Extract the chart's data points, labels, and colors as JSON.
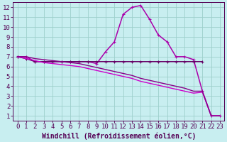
{
  "xlabel": "Windchill (Refroidissement éolien,°C)",
  "bg_color": "#c8eef0",
  "grid_color": "#9dcfcc",
  "ylim": [
    0.5,
    12.5
  ],
  "xlim": [
    -0.5,
    23.5
  ],
  "yticks": [
    1,
    2,
    3,
    4,
    5,
    6,
    7,
    8,
    9,
    10,
    11,
    12
  ],
  "xticks": [
    0,
    1,
    2,
    3,
    4,
    5,
    6,
    7,
    8,
    9,
    10,
    11,
    12,
    13,
    14,
    15,
    16,
    17,
    18,
    19,
    20,
    21,
    22,
    23
  ],
  "lines": [
    {
      "x": [
        0,
        1,
        2,
        3,
        4,
        5,
        6,
        7,
        8,
        9,
        10,
        11,
        12,
        13,
        14,
        15,
        16,
        17,
        18,
        19,
        20,
        21,
        22,
        23
      ],
      "y": [
        7.0,
        7.0,
        6.5,
        6.5,
        6.5,
        6.5,
        6.5,
        6.5,
        6.5,
        6.3,
        7.5,
        8.5,
        11.3,
        12.0,
        12.2,
        10.8,
        9.2,
        8.5,
        7.0,
        7.0,
        6.7,
        3.5,
        1.0,
        1.0
      ],
      "color": "#aa00aa",
      "lw": 1.1,
      "marker": "+"
    },
    {
      "x": [
        0,
        1,
        2,
        3,
        4,
        5,
        6,
        7,
        8,
        9,
        10,
        11,
        12,
        13,
        14,
        15,
        16,
        17,
        18,
        19,
        20,
        21
      ],
      "y": [
        7.0,
        6.8,
        6.5,
        6.5,
        6.5,
        6.5,
        6.5,
        6.5,
        6.5,
        6.5,
        6.5,
        6.5,
        6.5,
        6.5,
        6.5,
        6.5,
        6.5,
        6.5,
        6.5,
        6.5,
        6.5,
        6.5
      ],
      "color": "#660066",
      "lw": 1.1,
      "marker": "+"
    },
    {
      "x": [
        0,
        1,
        2,
        3,
        4,
        5,
        6,
        7,
        8,
        9,
        10,
        11,
        12,
        13,
        14,
        15,
        16,
        17,
        18,
        19,
        20,
        21,
        22,
        23
      ],
      "y": [
        7.0,
        6.8,
        6.6,
        6.4,
        6.3,
        6.2,
        6.1,
        6.0,
        5.8,
        5.6,
        5.4,
        5.2,
        5.0,
        4.8,
        4.5,
        4.3,
        4.1,
        3.9,
        3.7,
        3.5,
        3.3,
        3.4,
        1.0,
        1.0
      ],
      "color": "#cc00cc",
      "lw": 1.0,
      "marker": null
    },
    {
      "x": [
        0,
        1,
        2,
        3,
        4,
        5,
        6,
        7,
        8,
        9,
        10,
        11,
        12,
        13,
        14,
        15,
        16,
        17,
        18,
        19,
        20,
        21,
        22,
        23
      ],
      "y": [
        7.0,
        7.0,
        6.8,
        6.7,
        6.6,
        6.5,
        6.4,
        6.3,
        6.1,
        5.9,
        5.7,
        5.5,
        5.3,
        5.1,
        4.8,
        4.6,
        4.4,
        4.2,
        4.0,
        3.8,
        3.5,
        3.5,
        1.0,
        1.0
      ],
      "color": "#880088",
      "lw": 1.0,
      "marker": null
    }
  ],
  "font_color": "#550055",
  "tick_fontsize": 6.5,
  "xlabel_fontsize": 7.0
}
